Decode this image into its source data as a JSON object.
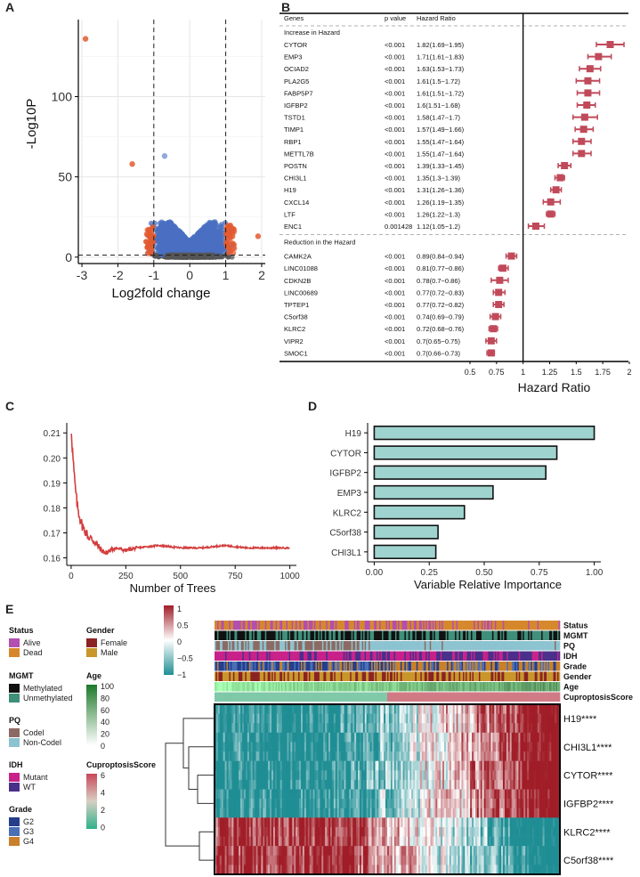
{
  "panels": {
    "a": "A",
    "b": "B",
    "c": "C",
    "d": "D",
    "e": "E"
  },
  "colors": {
    "forest": "#c04a5a",
    "trees_line": "#d43d3d",
    "bar_fill": "#9fd3cf",
    "volcano_blue": "#4a6fc2",
    "volcano_red": "#e35b30",
    "volcano_gray": "#555555"
  },
  "volcano": {
    "ylabel": "-Log10P",
    "xlabel": "Log2fold change"
  },
  "forest": {
    "header": {
      "genes": "Genes",
      "pvalue": "p value",
      "hr": "Hazard Ratio"
    },
    "section_increase": "Increase in Hazard",
    "section_reduction": "Reduction in the Hazard",
    "xlabel": "Hazard Ratio"
  },
  "trees": {
    "xlabel": "Number of Trees"
  },
  "importance": {
    "xlabel": "Variable Relative Importance"
  },
  "heatmap": {
    "legend_titles": {
      "status": "Status",
      "gender": "Gender",
      "mgmt": "MGMT",
      "age": "Age",
      "pq": "PQ",
      "idh": "IDH",
      "grade": "Grade",
      "cupro": "CuproptosisScore"
    },
    "status_items": [
      {
        "label": "Alive",
        "color": "#b24fb0"
      },
      {
        "label": "Dead",
        "color": "#d6872b"
      }
    ],
    "gender_items": [
      {
        "label": "Female",
        "color": "#8a2323"
      },
      {
        "label": "Male",
        "color": "#c8962a"
      }
    ],
    "mgmt_items": [
      {
        "label": "Methylated",
        "color": "#111111"
      },
      {
        "label": "Unmethylated",
        "color": "#3f8f7a"
      }
    ],
    "pq_items": [
      {
        "label": "Codel",
        "color": "#8c6a63"
      },
      {
        "label": "Non-Codel",
        "color": "#8cc3d0"
      }
    ],
    "idh_items": [
      {
        "label": "Mutant",
        "color": "#c8218a"
      },
      {
        "label": "WT",
        "color": "#4a2f8a"
      }
    ],
    "grade_items": [
      {
        "label": "G2",
        "color": "#243e8c"
      },
      {
        "label": "G3",
        "color": "#4a6fb6"
      },
      {
        "label": "G4",
        "color": "#c8802a"
      }
    ],
    "age_ticks": [
      "100",
      "80",
      "60",
      "40",
      "20",
      "0"
    ],
    "cupro_ticks": [
      "6",
      "4",
      "2",
      "0"
    ],
    "scale_ticks": [
      "1",
      "0.5",
      "0",
      "−0.5",
      "−1"
    ],
    "track_labels": [
      "Status",
      "MGMT",
      "PQ",
      "IDH",
      "Grade",
      "Gender",
      "Age",
      "CuproptosisScore"
    ],
    "gene_labels": [
      "H19****",
      "CHI3L1****",
      "CYTOR****",
      "IGFBP2****",
      "KLRC2****",
      "C5orf38****"
    ]
  },
  "chart_data": [
    {
      "type": "scatter",
      "title": "",
      "xlabel": "Log2fold change",
      "ylabel": "-Log10P",
      "xlim": [
        -3.1,
        2.1
      ],
      "ylim": [
        -4,
        148
      ],
      "xticks": [
        "-3",
        "-2",
        "-1",
        "0",
        "1",
        "2"
      ],
      "yticks": [
        "0",
        "50",
        "100"
      ],
      "thresholds": {
        "x": [
          -1,
          1
        ],
        "y": 1.3
      },
      "outliers": [
        {
          "x": -2.9,
          "y": 136,
          "group": "up"
        },
        {
          "x": -1.6,
          "y": 58,
          "group": "down"
        },
        {
          "x": -0.7,
          "y": 63,
          "group": "ns"
        },
        {
          "x": 1.9,
          "y": 13,
          "group": "down"
        }
      ]
    },
    {
      "type": "forest",
      "xlabel": "Hazard Ratio",
      "xlim": [
        0.45,
        2.0
      ],
      "xticks": [
        "0.5",
        "0.75",
        "1",
        "1.25",
        "1.5",
        "1.75",
        "2"
      ],
      "reference": 1,
      "increase": [
        {
          "gene": "CYTOR",
          "p": "<0.001",
          "hr_text": "1.82(1.69−1.95)",
          "hr": 1.82,
          "lo": 1.69,
          "hi": 1.95
        },
        {
          "gene": "EMP3",
          "p": "<0.001",
          "hr_text": "1.71(1.61−1.83)",
          "hr": 1.71,
          "lo": 1.61,
          "hi": 1.83
        },
        {
          "gene": "OCIAD2",
          "p": "<0.001",
          "hr_text": "1.63(1.53−1.73)",
          "hr": 1.63,
          "lo": 1.53,
          "hi": 1.73
        },
        {
          "gene": "PLA2G5",
          "p": "<0.001",
          "hr_text": "1.61(1.5−1.72)",
          "hr": 1.61,
          "lo": 1.5,
          "hi": 1.72
        },
        {
          "gene": "FABP5P7",
          "p": "<0.001",
          "hr_text": "1.61(1.51−1.72)",
          "hr": 1.61,
          "lo": 1.51,
          "hi": 1.72
        },
        {
          "gene": "IGFBP2",
          "p": "<0.001",
          "hr_text": "1.6(1.51−1.68)",
          "hr": 1.6,
          "lo": 1.51,
          "hi": 1.68
        },
        {
          "gene": "TSTD1",
          "p": "<0.001",
          "hr_text": "1.58(1.47−1.7)",
          "hr": 1.58,
          "lo": 1.47,
          "hi": 1.7
        },
        {
          "gene": "TIMP1",
          "p": "<0.001",
          "hr_text": "1.57(1.49−1.66)",
          "hr": 1.57,
          "lo": 1.49,
          "hi": 1.66
        },
        {
          "gene": "RBP1",
          "p": "<0.001",
          "hr_text": "1.55(1.47−1.64)",
          "hr": 1.55,
          "lo": 1.47,
          "hi": 1.64
        },
        {
          "gene": "METTL7B",
          "p": "<0.001",
          "hr_text": "1.55(1.47−1.64)",
          "hr": 1.55,
          "lo": 1.47,
          "hi": 1.64
        },
        {
          "gene": "POSTN",
          "p": "<0.001",
          "hr_text": "1.39(1.33−1.45)",
          "hr": 1.39,
          "lo": 1.33,
          "hi": 1.45
        },
        {
          "gene": "CHI3L1",
          "p": "<0.001",
          "hr_text": "1.35(1.3−1.39)",
          "hr": 1.35,
          "lo": 1.3,
          "hi": 1.39
        },
        {
          "gene": "H19",
          "p": "<0.001",
          "hr_text": "1.31(1.26−1.36)",
          "hr": 1.31,
          "lo": 1.26,
          "hi": 1.36
        },
        {
          "gene": "CXCL14",
          "p": "<0.001",
          "hr_text": "1.26(1.19−1.35)",
          "hr": 1.26,
          "lo": 1.19,
          "hi": 1.35
        },
        {
          "gene": "LTF",
          "p": "<0.001",
          "hr_text": "1.26(1.22−1.3)",
          "hr": 1.26,
          "lo": 1.22,
          "hi": 1.3
        },
        {
          "gene": "ENC1",
          "p": "0.001428",
          "hr_text": "1.12(1.05−1.2)",
          "hr": 1.12,
          "lo": 1.05,
          "hi": 1.2
        }
      ],
      "reduction": [
        {
          "gene": "CAMK2A",
          "p": "<0.001",
          "hr_text": "0.89(0.84−0.94)",
          "hr": 0.89,
          "lo": 0.84,
          "hi": 0.94
        },
        {
          "gene": "LINC01088",
          "p": "<0.001",
          "hr_text": "0.81(0.77−0.86)",
          "hr": 0.81,
          "lo": 0.77,
          "hi": 0.86
        },
        {
          "gene": "CDKN2B",
          "p": "<0.001",
          "hr_text": "0.78(0.7−0.86)",
          "hr": 0.78,
          "lo": 0.7,
          "hi": 0.86
        },
        {
          "gene": "LINC00689",
          "p": "<0.001",
          "hr_text": "0.77(0.72−0.83)",
          "hr": 0.77,
          "lo": 0.72,
          "hi": 0.83
        },
        {
          "gene": "TPTEP1",
          "p": "<0.001",
          "hr_text": "0.77(0.72−0.82)",
          "hr": 0.77,
          "lo": 0.72,
          "hi": 0.82
        },
        {
          "gene": "C5orf38",
          "p": "<0.001",
          "hr_text": "0.74(0.69−0.79)",
          "hr": 0.74,
          "lo": 0.69,
          "hi": 0.79
        },
        {
          "gene": "KLRC2",
          "p": "<0.001",
          "hr_text": "0.72(0.68−0.76)",
          "hr": 0.72,
          "lo": 0.68,
          "hi": 0.76
        },
        {
          "gene": "VIPR2",
          "p": "<0.001",
          "hr_text": "0.7(0.65−0.75)",
          "hr": 0.7,
          "lo": 0.65,
          "hi": 0.75
        },
        {
          "gene": "SMOC1",
          "p": "<0.001",
          "hr_text": "0.7(0.66−0.73)",
          "hr": 0.7,
          "lo": 0.66,
          "hi": 0.73
        }
      ]
    },
    {
      "type": "line",
      "xlabel": "Number of Trees",
      "ylabel": "",
      "xlim": [
        -20,
        1030
      ],
      "ylim": [
        0.157,
        0.214
      ],
      "xticks": [
        "0",
        "250",
        "500",
        "750",
        "1000"
      ],
      "yticks": [
        "0.16",
        "0.17",
        "0.18",
        "0.19",
        "0.20",
        "0.21"
      ],
      "x": [
        1,
        5,
        10,
        15,
        20,
        25,
        30,
        40,
        50,
        60,
        70,
        80,
        90,
        100,
        120,
        140,
        160,
        180,
        200,
        250,
        300,
        400,
        500,
        600,
        700,
        800,
        900,
        1000
      ],
      "values": [
        0.211,
        0.205,
        0.198,
        0.192,
        0.187,
        0.183,
        0.18,
        0.176,
        0.173,
        0.171,
        0.17,
        0.168,
        0.168,
        0.167,
        0.165,
        0.163,
        0.162,
        0.163,
        0.164,
        0.163,
        0.164,
        0.165,
        0.164,
        0.164,
        0.165,
        0.164,
        0.164,
        0.164
      ]
    },
    {
      "type": "bar",
      "orientation": "horizontal",
      "xlabel": "Variable Relative Importance",
      "xlim": [
        -0.03,
        1.03
      ],
      "xticks": [
        "0.00",
        "0.25",
        "0.50",
        "0.75",
        "1.00"
      ],
      "categories": [
        "H19",
        "CYTOR",
        "IGFBP2",
        "EMP3",
        "KLRC2",
        "C5orf38",
        "CHI3L1"
      ],
      "values": [
        1.0,
        0.83,
        0.78,
        0.54,
        0.41,
        0.29,
        0.28
      ]
    },
    {
      "type": "heatmap",
      "rows": [
        "H19",
        "CHI3L1",
        "CYTOR",
        "IGFBP2",
        "KLRC2",
        "C5orf38"
      ],
      "scale": [
        -1,
        1
      ]
    }
  ]
}
